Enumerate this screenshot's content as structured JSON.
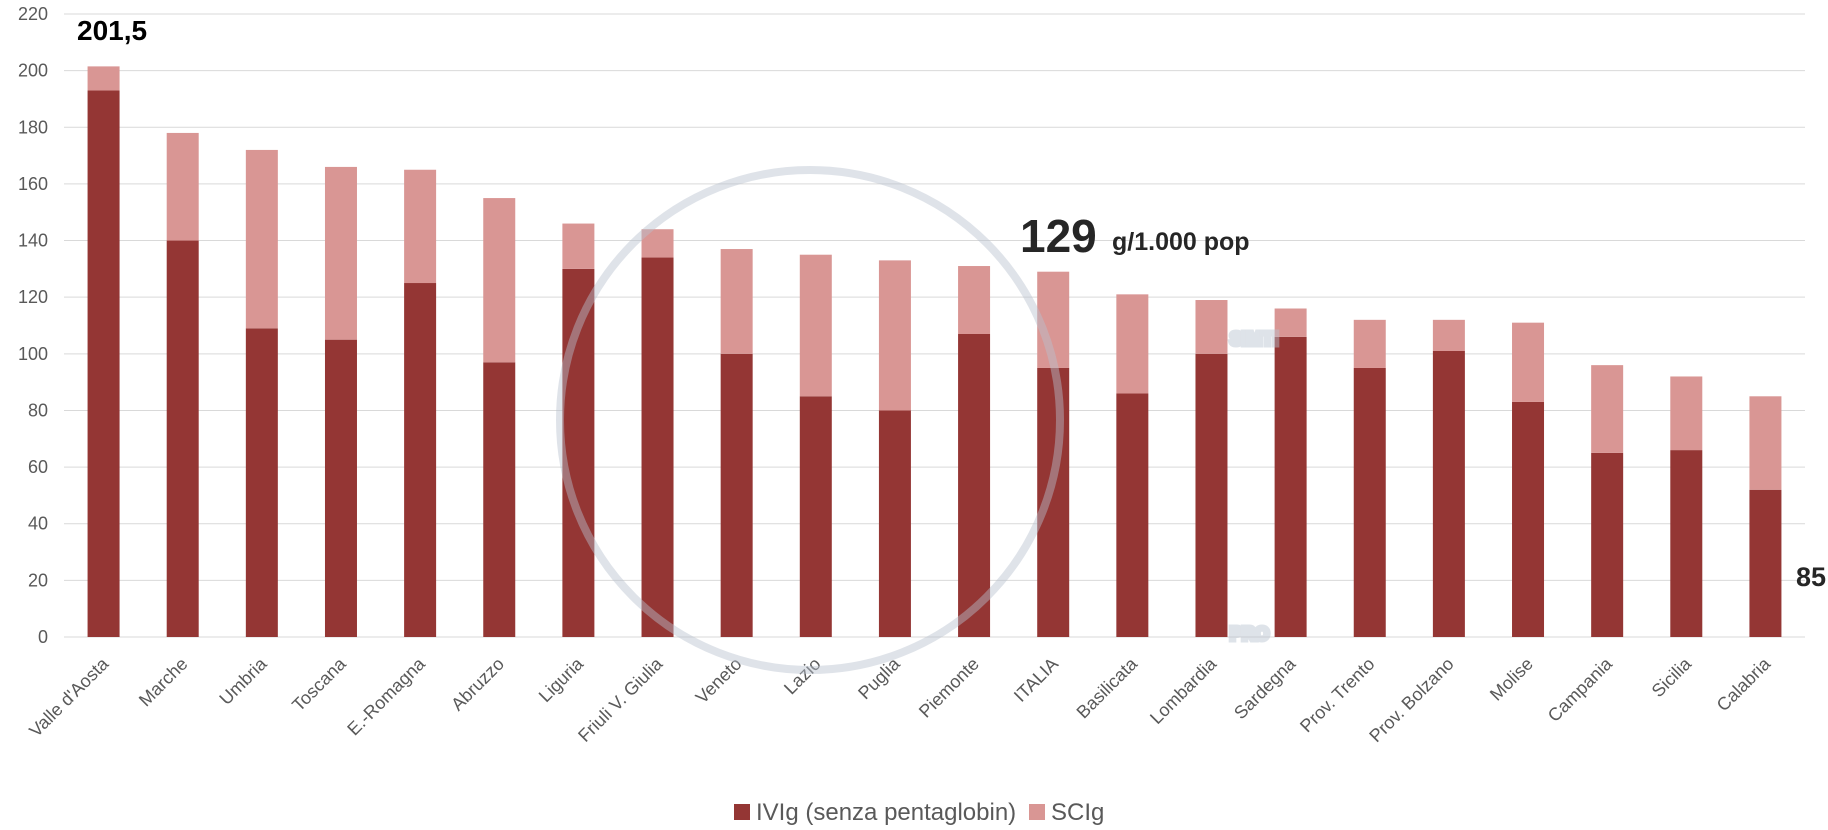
{
  "chart_data": {
    "type": "stacked_bar",
    "categories": [
      "Valle d'Aosta",
      "Marche",
      "Umbria",
      "Toscana",
      "E.-Romagna",
      "Abruzzo",
      "Liguria",
      "Friuli V. Giulia",
      "Veneto",
      "Lazio",
      "Puglia",
      "Piemonte",
      "ITALIA",
      "Basilicata",
      "Lombardia",
      "Sardegna",
      "Prov. Trento",
      "Prov. Bolzano",
      "Molise",
      "Campania",
      "Sicilia",
      "Calabria"
    ],
    "series": [
      {
        "name": "IVIg (senza pentaglobin)",
        "color": "#943634",
        "values": [
          193,
          140,
          109,
          105,
          125,
          97,
          130,
          134,
          100,
          85,
          80,
          107,
          95,
          86,
          100,
          106,
          95,
          101,
          83,
          65,
          66,
          52
        ]
      },
      {
        "name": "SCIg",
        "color": "#d99694",
        "values": [
          8.5,
          38,
          63,
          61,
          40,
          58,
          16,
          10,
          37,
          50,
          53,
          24,
          34,
          35,
          19,
          10,
          17,
          11,
          28,
          31,
          26,
          33
        ]
      }
    ],
    "ylim": [
      0,
      220
    ],
    "yticks": [
      0,
      20,
      40,
      60,
      80,
      100,
      120,
      140,
      160,
      180,
      200,
      220
    ],
    "grid": true,
    "annotations": [
      "201,5",
      "129",
      "g/1.000 pop",
      "85"
    ],
    "watermark": [
      "SIMTI",
      "PRO"
    ],
    "legend": "bottom"
  }
}
